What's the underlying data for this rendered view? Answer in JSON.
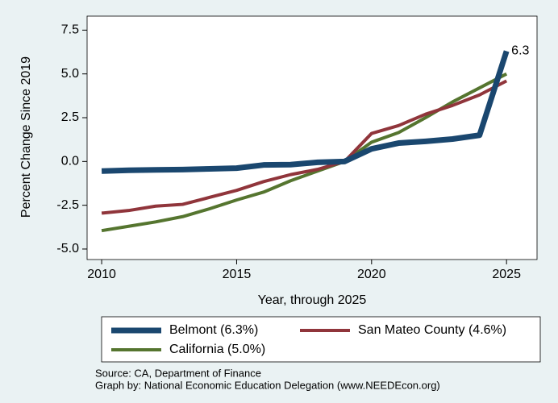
{
  "chart_data": {
    "type": "line",
    "x_label": "Year, through 2025",
    "y_label": "Percent Change Since 2019",
    "x": [
      2010,
      2011,
      2012,
      2013,
      2014,
      2015,
      2016,
      2017,
      2018,
      2019,
      2020,
      2021,
      2022,
      2023,
      2024,
      2025
    ],
    "series": [
      {
        "name": "Belmont (6.3%)",
        "color": "#1a476f",
        "width": 7,
        "values": [
          -0.55,
          -0.5,
          -0.48,
          -0.46,
          -0.42,
          -0.38,
          -0.2,
          -0.18,
          -0.05,
          0,
          0.72,
          1.05,
          1.15,
          1.28,
          1.5,
          6.3
        ]
      },
      {
        "name": "San Mateo County (4.6%)",
        "color": "#90353b",
        "width": 4,
        "values": [
          -2.95,
          -2.8,
          -2.55,
          -2.45,
          -2.05,
          -1.65,
          -1.15,
          -0.75,
          -0.45,
          0,
          1.6,
          2.05,
          2.7,
          3.2,
          3.8,
          4.6
        ]
      },
      {
        "name": "California (5.0%)",
        "color": "#55752f",
        "width": 4,
        "values": [
          -3.95,
          -3.7,
          -3.45,
          -3.15,
          -2.7,
          -2.2,
          -1.75,
          -1.1,
          -0.55,
          0,
          1.1,
          1.65,
          2.5,
          3.4,
          4.2,
          5.0
        ]
      }
    ],
    "annotations": [
      {
        "text": "6.3"
      }
    ],
    "xlim": [
      2009.46,
      2026.13
    ],
    "xticks": [
      2010,
      2015,
      2020,
      2025
    ],
    "ylim": [
      -5.6,
      8.3
    ],
    "yticks": [
      {
        "value": 7.5,
        "label": "7.5"
      },
      {
        "value": 5,
        "label": "5.0"
      },
      {
        "value": 2.5,
        "label": "2.5"
      },
      {
        "value": 0,
        "label": "0.0"
      },
      {
        "value": -2.5,
        "label": "-2.5"
      },
      {
        "value": -5,
        "label": "-5.0"
      }
    ],
    "grid": false,
    "notes": [
      "Source: CA, Department of Finance",
      "Graph by: National Economic Education Delegation (www.NEEDEcon.org)"
    ]
  }
}
